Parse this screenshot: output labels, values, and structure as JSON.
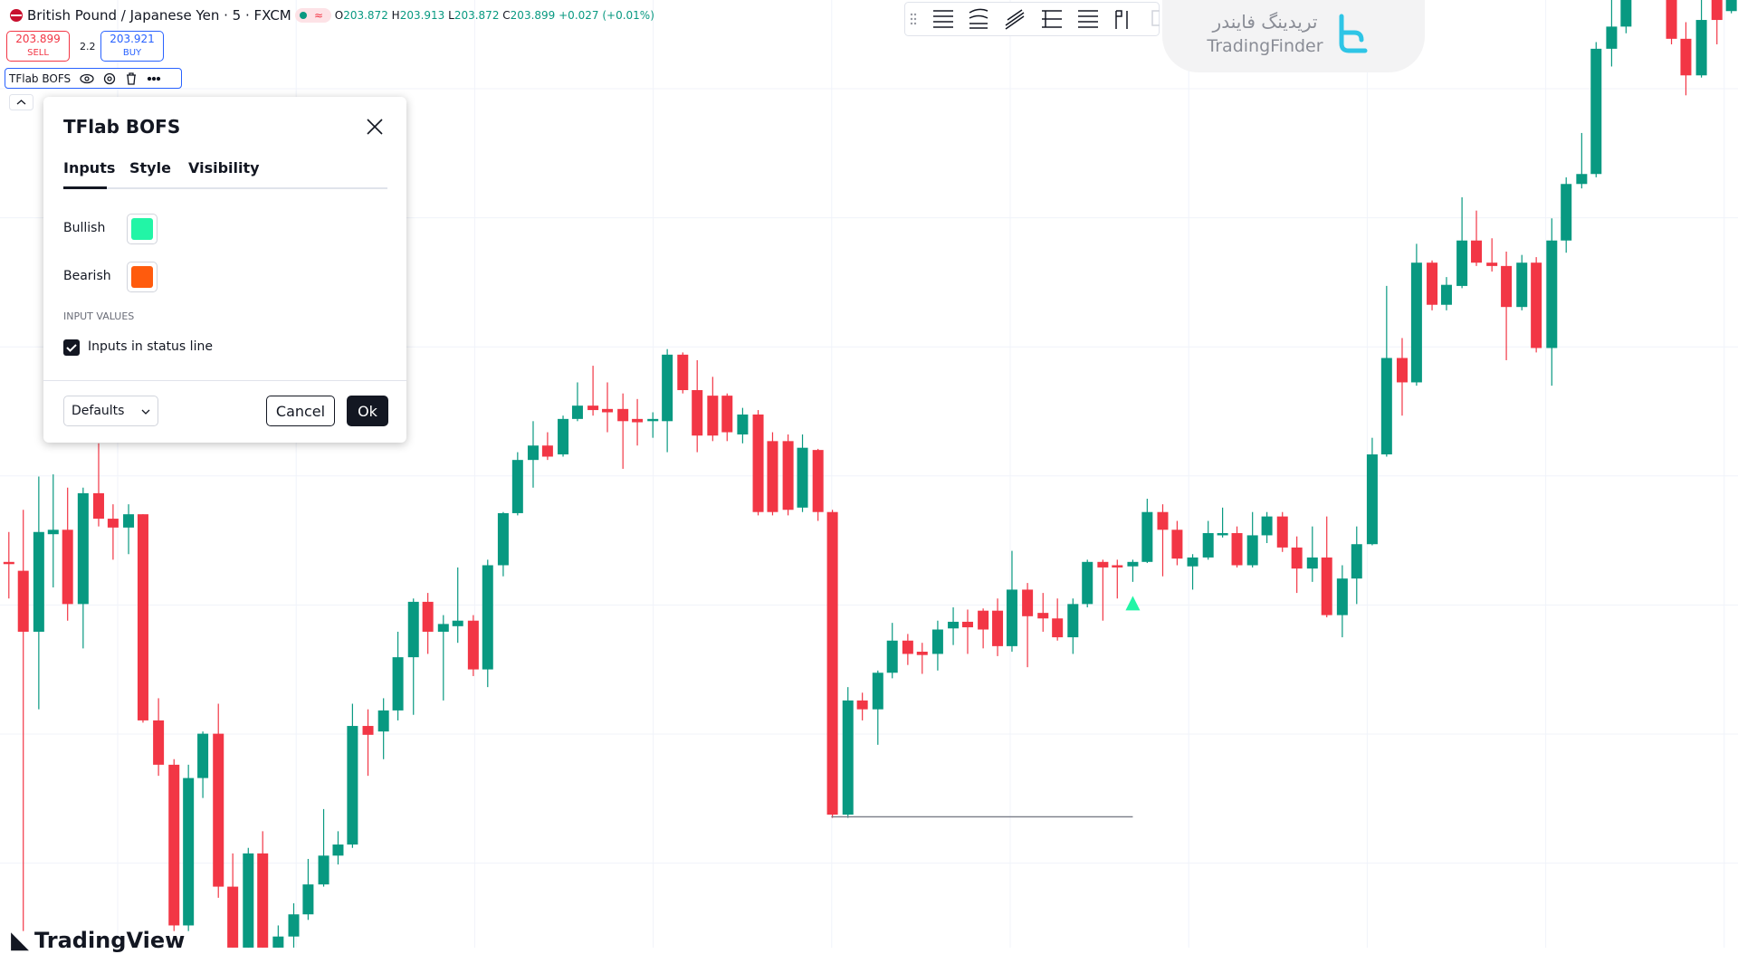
{
  "header": {
    "symbol": "British Pound / Japanese Yen · 5 · FXCM",
    "open_label": "O",
    "open": "203.872",
    "high_label": "H",
    "high": "203.913",
    "low_label": "L",
    "low": "203.872",
    "close_label": "C",
    "close": "203.899",
    "change": "+0.027 (+0.01%)"
  },
  "trade": {
    "sell_price": "203.899",
    "sell_label": "SELL",
    "spread": "2.2",
    "buy_price": "203.921",
    "buy_label": "BUY"
  },
  "indicator": {
    "name": "TFlab BOFS"
  },
  "dialog": {
    "title": "TFlab BOFS",
    "tabs": [
      "Inputs",
      "Style",
      "Visibility"
    ],
    "inputs": [
      {
        "label": "Bullish",
        "color": "#22f5a6"
      },
      {
        "label": "Bearish",
        "color": "#ff5b0d"
      }
    ],
    "section": "INPUT VALUES",
    "checkbox": "Inputs in status line",
    "defaults": "Defaults",
    "cancel": "Cancel",
    "ok": "Ok"
  },
  "watermark": {
    "persian": "تریدینگ فایندر",
    "latin": "TradingFinder"
  },
  "footer": {
    "brand": "TradingView"
  }
}
